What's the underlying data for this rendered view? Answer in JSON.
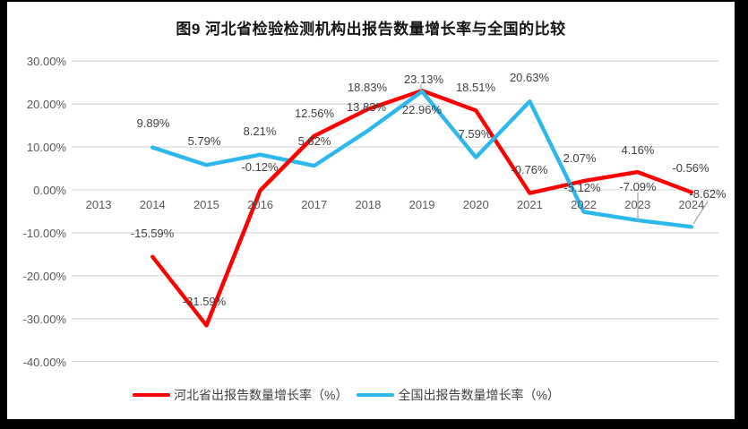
{
  "title": "图9 河北省检验检测机构出报告数量增长率与全国的比较",
  "colors": {
    "hebei_line": "#FE0000",
    "national_line": "#2CB8EC",
    "gridline": "#D9D9D9",
    "axis_text": "#595959",
    "data_label_text": "#404040",
    "leader_line": "#A6A6A6",
    "frame": "#000000",
    "background": "#FFFFFF"
  },
  "legend": {
    "items": [
      {
        "label": "河北省出报告数量增长率（%）",
        "series_key": "hebei"
      },
      {
        "label": "全国出报告数量增长率（%）",
        "series_key": "national"
      }
    ]
  },
  "chart_data": {
    "type": "line",
    "title": "图9 河北省检验检测机构出报告数量增长率与全国的比较",
    "categories": [
      "2013",
      "2014",
      "2015",
      "2016",
      "2017",
      "2018",
      "2019",
      "2020",
      "2021",
      "2022",
      "2023",
      "2024"
    ],
    "y_ticks": [
      "30.00%",
      "20.00%",
      "10.00%",
      "0.00%",
      "-10.00%",
      "-20.00%",
      "-30.00%",
      "-40.00%"
    ],
    "y_tick_values": [
      30,
      20,
      10,
      0,
      -10,
      -20,
      -30,
      -40
    ],
    "ylim": [
      -40,
      30
    ],
    "grid": true,
    "legend_position": "bottom",
    "series": [
      {
        "name": "河北省出报告数量增长率（%）",
        "color": "#FE0000",
        "values": [
          null,
          -15.59,
          -31.59,
          -0.12,
          12.56,
          18.83,
          23.13,
          18.51,
          -0.76,
          2.07,
          4.16,
          -0.56
        ],
        "labels": [
          null,
          "-15.59%",
          "-31.59%",
          "-0.12%",
          "12.56%",
          "18.83%",
          "23.13%",
          "18.51%",
          "-0.76%",
          "2.07%",
          "4.16%",
          "-0.56%"
        ]
      },
      {
        "name": "全国出报告数量增长率（%）",
        "color": "#2CB8EC",
        "values": [
          null,
          9.89,
          5.79,
          8.21,
          5.62,
          13.83,
          22.96,
          7.59,
          20.63,
          -5.12,
          -7.09,
          -8.62
        ],
        "labels": [
          null,
          "9.89%",
          "5.79%",
          "8.21%",
          "5.62%",
          "13.83%",
          "22.96%",
          "7.59%",
          "20.63%",
          "-5.12%",
          "-7.09%",
          "-8.62%"
        ]
      }
    ]
  }
}
